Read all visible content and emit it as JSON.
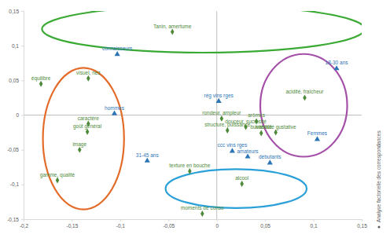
{
  "chart_data": {
    "type": "scatter",
    "note": "Analyse factorielle des correspondances",
    "xlim": [
      -0.2,
      0.15
    ],
    "xticks": [
      {
        "value": -0.2,
        "label": "-0,2"
      },
      {
        "value": -0.15,
        "label": "-0,15"
      },
      {
        "value": -0.1,
        "label": "-0,1"
      },
      {
        "value": -0.05,
        "label": "-0,05"
      },
      {
        "value": 0,
        "label": "0"
      },
      {
        "value": 0.05,
        "label": "0,05"
      },
      {
        "value": 0.1,
        "label": "0,1"
      },
      {
        "value": 0.15,
        "label": "0,15"
      }
    ],
    "ylim": [
      -0.15,
      0.15
    ],
    "yticks": [
      {
        "value": -0.15,
        "label": "-0,15"
      },
      {
        "value": -0.1,
        "label": "-0,1"
      },
      {
        "value": -0.05,
        "label": "-0,05"
      },
      {
        "value": 0,
        "label": "0"
      },
      {
        "value": 0.05,
        "label": "0,05"
      },
      {
        "value": 0.1,
        "label": "0,1"
      },
      {
        "value": 0.15,
        "label": "0,15"
      }
    ],
    "grid": false,
    "series": [
      {
        "color": "#4e8a3a",
        "marker": "diamond",
        "labels": [
          "Tanin, amertume",
          "équilibre",
          "visuel, nez",
          "caractère",
          "goût général",
          "image",
          "gamme, qualité",
          "rondeur, ampleur",
          "structure, puissance",
          "douceur, sucrosité",
          "arômes",
          "buvabilité",
          "intensité gustative",
          "acidité, fraîcheur",
          "texture en bouche",
          "alcool",
          "moments de conso"
        ],
        "x": [
          -0.046,
          -0.182,
          -0.133,
          -0.133,
          -0.134,
          -0.142,
          -0.165,
          0.005,
          0.011,
          0.03,
          0.041,
          0.046,
          0.061,
          0.091,
          -0.028,
          0.026,
          -0.015
        ],
        "values": [
          0.12,
          0.045,
          0.053,
          -0.0125,
          -0.024,
          -0.05,
          -0.094,
          -0.005,
          -0.022,
          -0.017,
          -0.009,
          -0.026,
          -0.025,
          0.025,
          -0.081,
          -0.099,
          -0.142
        ]
      },
      {
        "color": "#2e75b6",
        "marker": "triangle",
        "labels": [
          "connaisseurs",
          "hommes",
          "31-45 ans",
          "rég vins rges",
          "ccc vins rges",
          "amateurs",
          "débutants",
          "Femmes",
          "18-30 ans"
        ],
        "x": [
          -0.103,
          -0.106,
          -0.072,
          0.002,
          0.016,
          0.032,
          0.055,
          0.104,
          0.124
        ],
        "values": [
          0.0875,
          0.002,
          -0.066,
          0.02,
          -0.052,
          -0.06,
          -0.069,
          -0.035,
          0.067
        ]
      }
    ],
    "ellipses": [
      {
        "cx": -0.014,
        "cy": 0.124,
        "rx": 0.167,
        "ry": 0.034,
        "color": "#3aaa35"
      },
      {
        "cx": -0.138,
        "cy": -0.034,
        "rx": 0.042,
        "ry": 0.102,
        "color": "#e46c2a"
      },
      {
        "cx": 0.09,
        "cy": 0.014,
        "rx": 0.045,
        "ry": 0.074,
        "color": "#a550a8"
      },
      {
        "cx": 0.02,
        "cy": -0.106,
        "rx": 0.073,
        "ry": 0.028,
        "color": "#2aa0d8"
      }
    ]
  }
}
